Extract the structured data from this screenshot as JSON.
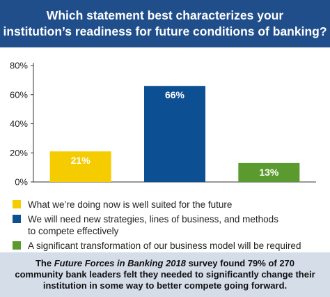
{
  "header": {
    "title_line1": "Which statement best characterizes your",
    "title_line2": "institution’s readiness for future conditions of banking?"
  },
  "chart_data": {
    "type": "bar",
    "categories": [
      "What we’re doing now is well suited for the future",
      "We will need new strategies, lines of business, and methods to compete effectively",
      "A significant transformation of our business model will be required"
    ],
    "values": [
      21,
      66,
      13
    ],
    "value_labels": [
      "21%",
      "66%",
      "13%"
    ],
    "colors": [
      "#f5cc00",
      "#0d4f93",
      "#5a9a2e"
    ],
    "ylim": [
      0,
      80
    ],
    "yticks": [
      "0%",
      "20%",
      "40%",
      "60%",
      "80%"
    ],
    "ytick_values": [
      0,
      20,
      40,
      60,
      80
    ],
    "grid": false,
    "legend_position": "bottom"
  },
  "legend": {
    "items": [
      {
        "label": "What we’re doing now is well suited for the future",
        "color": "#f5cc00"
      },
      {
        "label_line1": "We will need new strategies, lines of business, and methods",
        "label_line2": "to compete effectively",
        "color": "#0d4f93"
      },
      {
        "label": "A significant transformation of our business model will be required",
        "color": "#5a9a2e"
      }
    ]
  },
  "footer": {
    "pre": "The ",
    "italic": "Future Forces in Banking 2018",
    "post": " survey found 79% of 270",
    "line2": "community bank leaders felt they needed to significantly change their",
    "line3": "institution in some way to better compete going forward."
  }
}
